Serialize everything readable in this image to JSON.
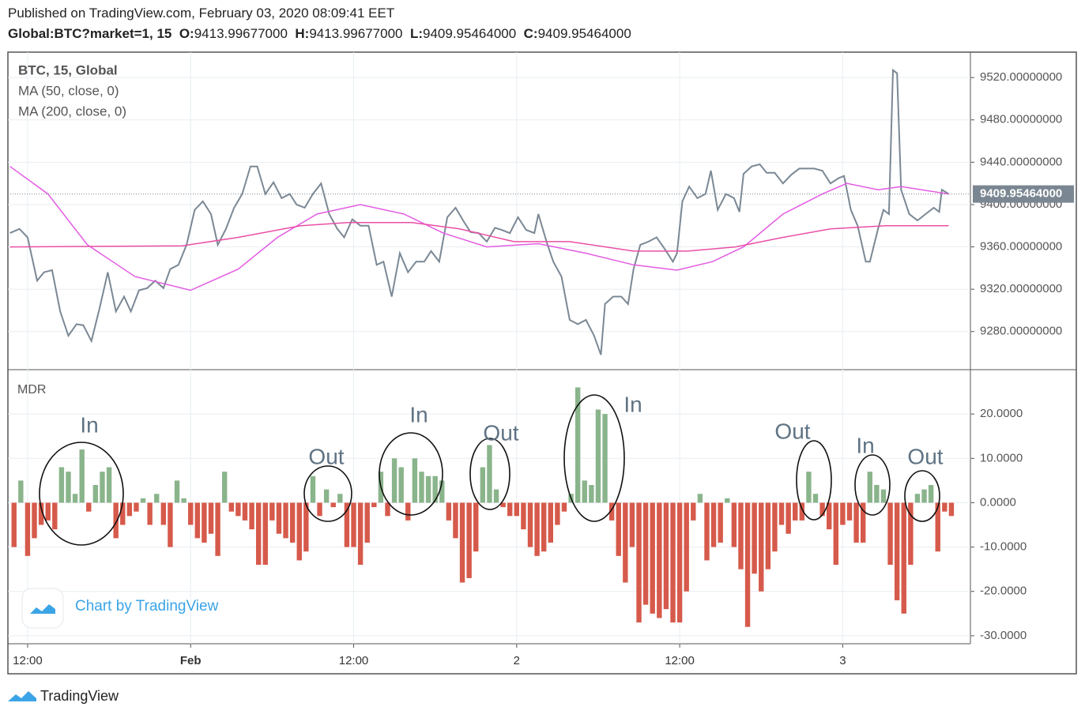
{
  "header": {
    "published": "Published on TradingView.com, February 03, 2020 08:09:41 EET",
    "symbol": "Global:BTC?market=1, 15",
    "ohlc": [
      {
        "label": "O:",
        "value": "9413.99677000"
      },
      {
        "label": "H:",
        "value": "9413.99677000"
      },
      {
        "label": "L:",
        "value": "9409.95464000"
      },
      {
        "label": "C:",
        "value": "9409.95464000"
      }
    ]
  },
  "chart_data": [
    {
      "type": "line",
      "grid": true,
      "xlim": [
        -13.45,
        57.4
      ],
      "ylim": [
        9244,
        9544
      ],
      "yticks": [
        {
          "value": 9280,
          "label": "9280.00000000"
        },
        {
          "value": 9320,
          "label": "9320.00000000"
        },
        {
          "value": 9360,
          "label": "9360.00000000"
        },
        {
          "value": 9400,
          "label": "9400.00000000"
        },
        {
          "value": 9440,
          "label": "9440.00000000"
        },
        {
          "value": 9480,
          "label": "9480.00000000"
        },
        {
          "value": 9520,
          "label": "9520.00000000"
        }
      ],
      "last_price": {
        "value": 9409.95464,
        "label": "9409.95464000"
      },
      "series": [
        {
          "name": "BTC, 15, Global",
          "color": "#7b8894",
          "x": [
            -13.3,
            -12.6,
            -12,
            -11.3,
            -10.8,
            -10.2,
            -9.6,
            -9,
            -8.4,
            -7.9,
            -7.3,
            -6.7,
            -6.1,
            -5.5,
            -4.9,
            -4.4,
            -3.8,
            -3.2,
            -2.6,
            -2,
            -1.5,
            -0.9,
            -0.3,
            0.3,
            0.9,
            1.5,
            2,
            2.6,
            3.2,
            3.8,
            4.4,
            4.9,
            5.5,
            6.1,
            6.7,
            7.3,
            7.8,
            8.4,
            9,
            9.6,
            10.2,
            10.8,
            11.3,
            11.9,
            12.5,
            13.1,
            13.7,
            14.2,
            14.8,
            15.4,
            16,
            16.6,
            17.2,
            17.7,
            18.3,
            18.9,
            19.5,
            20.1,
            20.6,
            21.2,
            21.8,
            22.4,
            22.9,
            23.5,
            24.1,
            24.7,
            25.3,
            25.6,
            26.2,
            26.7,
            27.3,
            27.9,
            28.5,
            29.1,
            29.7,
            30.2,
            30.5,
            31.1,
            31.7,
            32.2,
            32.6,
            33.1,
            33.7,
            34.3,
            34.9,
            35.5,
            35.8,
            36.2,
            36.7,
            37.3,
            37.9,
            38.3,
            38.8,
            39.4,
            40,
            40.4,
            40.7,
            41.3,
            41.9,
            42.4,
            43,
            43.6,
            44.2,
            44.8,
            45.3,
            45.9,
            46.5,
            47.1,
            47.7,
            48.1,
            48.6,
            49.1,
            49.7,
            50,
            50.6,
            51,
            51.4,
            51.7,
            52,
            52.3,
            52.9,
            53.5,
            54.1,
            54.7,
            55.1,
            55.3,
            55.8
          ],
          "values": [
            9373,
            9377,
            9369,
            9328,
            9336,
            9338,
            9299,
            9276,
            9287,
            9286,
            9271,
            9302,
            9336,
            9299,
            9313,
            9299,
            9319,
            9321,
            9328,
            9321,
            9339,
            9343,
            9362,
            9395,
            9403,
            9391,
            9362,
            9377,
            9397,
            9410,
            9436,
            9436,
            9410,
            9421,
            9406,
            9410,
            9400,
            9397,
            9410,
            9420,
            9391,
            9377,
            9369,
            9386,
            9380,
            9380,
            9343,
            9346,
            9313,
            9354,
            9336,
            9346,
            9346,
            9356,
            9346,
            9388,
            9397,
            9384,
            9374,
            9373,
            9365,
            9378,
            9376,
            9373,
            9388,
            9376,
            9373,
            9391,
            9365,
            9346,
            9332,
            9291,
            9287,
            9291,
            9276,
            9258,
            9306,
            9313,
            9313,
            9306,
            9339,
            9362,
            9365,
            9369,
            9358,
            9346,
            9354,
            9403,
            9417,
            9406,
            9410,
            9432,
            9395,
            9410,
            9406,
            9393,
            9429,
            9436,
            9438,
            9430,
            9430,
            9420,
            9428,
            9434,
            9434,
            9434,
            9432,
            9420,
            9425,
            9427,
            9395,
            9380,
            9346,
            9346,
            9377,
            9395,
            9391,
            9527,
            9524,
            9414,
            9391,
            9385,
            9391,
            9397,
            9393,
            9414,
            9409.95
          ]
        },
        {
          "name": "MA (50, close, 0)",
          "color": "#e35ce3",
          "x": [
            -13.3,
            -10.5,
            -7.6,
            -4.1,
            0,
            3.5,
            6.4,
            9.3,
            12.5,
            15.7,
            18.6,
            21.8,
            25.6,
            29.1,
            32.6,
            35.8,
            38.4,
            40.7,
            43.6,
            46.5,
            48.3,
            50.6,
            52.3,
            55.8
          ],
          "values": [
            9436,
            9410,
            9362,
            9332,
            9319,
            9339,
            9369,
            9391,
            9400,
            9391,
            9373,
            9360,
            9363,
            9354,
            9343,
            9338,
            9346,
            9360,
            9391,
            9410,
            9420,
            9414,
            9417,
            9410
          ]
        },
        {
          "name": "MA (200, close, 0)",
          "color": "#ea4fa6",
          "x": [
            -13.3,
            -0.6,
            3.5,
            8.1,
            11.6,
            16.3,
            19.8,
            23.8,
            27.9,
            32.6,
            36.6,
            40.1,
            43.6,
            47.1,
            51.2,
            55.8
          ],
          "values": [
            9360,
            9361,
            9369,
            9380,
            9383,
            9383,
            9377,
            9365,
            9365,
            9356,
            9356,
            9360,
            9369,
            9377,
            9380,
            9380
          ]
        }
      ]
    },
    {
      "type": "bar",
      "grid": true,
      "xlim": [
        -13.45,
        57.4
      ],
      "ylim": [
        -31.8,
        30
      ],
      "xticks": [
        {
          "value": -12,
          "label": "12:00"
        },
        {
          "value": 0,
          "label": "Feb"
        },
        {
          "value": 12,
          "label": "12:00"
        },
        {
          "value": 24,
          "label": "2"
        },
        {
          "value": 36,
          "label": "12:00"
        },
        {
          "value": 48,
          "label": "3"
        }
      ],
      "yticks": [
        {
          "value": -30,
          "label": "-30.0000"
        },
        {
          "value": -20,
          "label": "-20.0000"
        },
        {
          "value": -10,
          "label": "-10.0000"
        },
        {
          "value": 0,
          "label": "0.0000"
        },
        {
          "value": 10,
          "label": "10.0000"
        },
        {
          "value": 20,
          "label": "20.0000"
        }
      ],
      "series": [
        {
          "name": "MDR",
          "colors": {
            "positive": "#8ab48b",
            "negative": "#d65a4b"
          },
          "x": [
            -13,
            -12.5,
            -12,
            -11.5,
            -11,
            -10.5,
            -10,
            -9.5,
            -9,
            -8.5,
            -8,
            -7.5,
            -7,
            -6.5,
            -6,
            -5.5,
            -5,
            -4.5,
            -4,
            -3.5,
            -3,
            -2.5,
            -2,
            -1.5,
            -1,
            -0.5,
            0,
            0.5,
            1,
            1.5,
            2,
            2.5,
            3,
            3.5,
            4,
            4.5,
            5,
            5.5,
            6,
            6.5,
            7,
            7.5,
            8,
            8.5,
            9,
            9.5,
            10,
            10.5,
            11,
            11.5,
            12,
            12.5,
            13,
            13.5,
            14,
            14.5,
            15,
            15.5,
            16,
            16.5,
            17,
            17.5,
            18,
            18.5,
            19,
            19.5,
            20,
            20.5,
            21,
            21.5,
            22,
            22.5,
            23,
            23.5,
            24,
            24.5,
            25,
            25.5,
            26,
            26.5,
            27,
            27.5,
            28,
            28.5,
            29,
            29.5,
            30,
            30.5,
            31,
            31.5,
            32,
            32.5,
            33,
            33.5,
            34,
            34.5,
            35,
            35.5,
            36,
            36.5,
            37,
            37.5,
            38,
            38.5,
            39,
            39.5,
            40,
            40.5,
            41,
            41.5,
            42,
            42.5,
            43,
            43.5,
            44,
            44.5,
            45,
            45.5,
            46,
            46.5,
            47,
            47.5,
            48,
            48.5,
            49,
            49.5,
            50,
            50.5,
            51,
            51.5,
            52,
            52.5,
            53,
            53.5,
            54,
            54.5,
            55,
            55.5,
            56
          ],
          "values": [
            -10,
            5,
            -12,
            -8,
            -5,
            -4,
            -6,
            8,
            7,
            2,
            12,
            -2,
            4,
            7,
            8,
            -8,
            -5,
            -3,
            -2,
            1,
            -5,
            2,
            -5,
            -10,
            5,
            1,
            -5,
            -8,
            -9,
            -7,
            -12,
            7,
            -2,
            -3,
            -4,
            -6,
            -14,
            -14,
            -4,
            -7,
            -8,
            -9,
            -13,
            -11,
            6,
            -3,
            3,
            -1,
            2,
            -10,
            -10,
            -14,
            -9,
            -1,
            7,
            -3,
            10,
            8,
            -4,
            10,
            7,
            6,
            6,
            5,
            -4,
            -8,
            -18,
            -17,
            -11,
            8,
            13,
            3,
            -1,
            -3,
            -3,
            -6,
            -10,
            -12,
            -11,
            -9,
            -5,
            -2,
            2,
            26,
            5,
            4,
            21,
            20,
            -4,
            -12,
            -18,
            -10,
            -27,
            -23,
            -25,
            -26,
            -24,
            -27,
            -27,
            -20,
            -4,
            2,
            -13,
            -10,
            -9,
            1,
            -10,
            -15,
            -28,
            -16,
            -20,
            -15,
            -11,
            -5,
            -7,
            -4,
            -4,
            7,
            2,
            -3,
            -6,
            -14,
            -5,
            -4,
            -9,
            -9,
            7,
            4,
            3,
            -14,
            -22,
            -25,
            -14,
            2,
            3,
            4,
            -11,
            -2,
            -3
          ]
        }
      ],
      "annotations": [
        "In",
        "Out",
        "In",
        "Out",
        "In",
        "Out",
        "In",
        "Out"
      ]
    }
  ],
  "watermark": "Chart by TradingView",
  "footer": "TradingView"
}
